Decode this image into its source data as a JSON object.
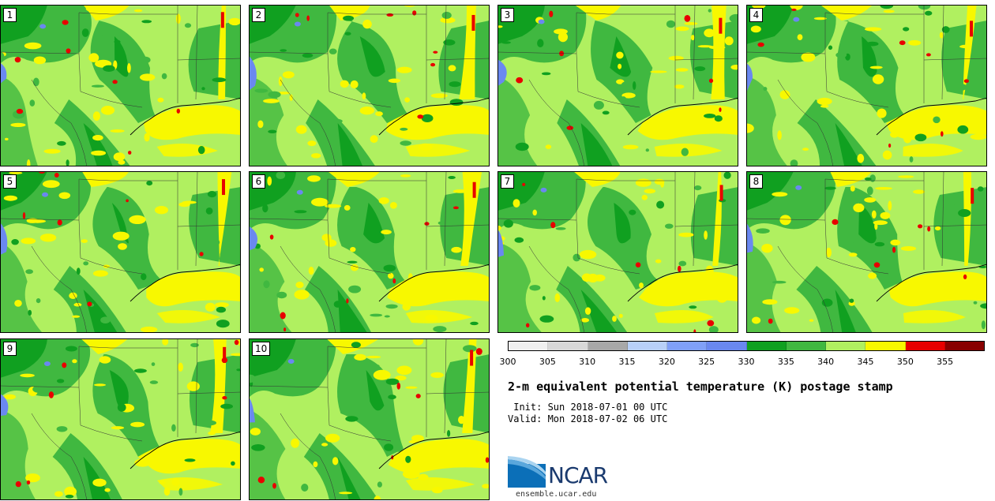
{
  "panels": [
    {
      "label": "1"
    },
    {
      "label": "2"
    },
    {
      "label": "3"
    },
    {
      "label": "4"
    },
    {
      "label": "5"
    },
    {
      "label": "6"
    },
    {
      "label": "7"
    },
    {
      "label": "8"
    },
    {
      "label": "9"
    },
    {
      "label": "10"
    }
  ],
  "colorbar": {
    "colors": [
      "#f0f0f0",
      "#d8d8d8",
      "#a8a8a8",
      "#b8d0f8",
      "#80a0f8",
      "#6a88f0",
      "#10a020",
      "#40b840",
      "#b0f060",
      "#f8f800",
      "#e80000",
      "#880000"
    ],
    "tick_labels": [
      "300",
      "305",
      "310",
      "315",
      "320",
      "325",
      "330",
      "335",
      "340",
      "345",
      "350",
      "355"
    ]
  },
  "title": "2-m equivalent potential temperature (K) postage stamp",
  "init_line": " Init: Sun 2018-07-01 00 UTC",
  "valid_line": "Valid: Mon 2018-07-02 06 UTC",
  "logo": {
    "text": "NCAR",
    "url_text": "ensemble.ucar.edu"
  },
  "map_colors": {
    "land_light": "#b0f060",
    "land_mid": "#40b840",
    "land_dark": "#10a020",
    "warm": "#f8f800",
    "hot": "#e80000",
    "water_cold": "#6a88f0"
  }
}
